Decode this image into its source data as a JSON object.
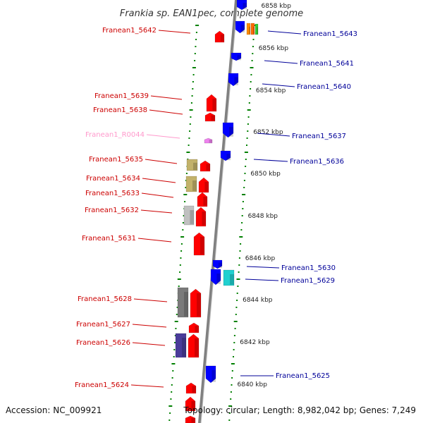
{
  "title": "Frankia sp. EAN1pec, complete genome",
  "footer": {
    "accession": "Accession: NC_009921",
    "topology": "Topology: circular; Length: 8,982,042 bp; Genes: 7,249"
  },
  "scale_labels": [
    "6858 kbp",
    "6856 kbp",
    "6854 kbp",
    "6852 kbp",
    "6850 kbp",
    "6848 kbp",
    "6846 kbp",
    "6844 kbp",
    "6842 kbp",
    "6840 kbp"
  ],
  "left_labels": [
    "Franean1_5642",
    "Franean1_5639",
    "Franean1_5638",
    "Franean1_R0044",
    "Franean1_5635",
    "Franean1_5634",
    "Franean1_5633",
    "Franean1_5632",
    "Franean1_5631",
    "Franean1_5628",
    "Franean1_5627",
    "Franean1_5626",
    "Franean1_5624"
  ],
  "right_labels": [
    "Franean1_5643",
    "Franean1_5641",
    "Franean1_5640",
    "Franean1_5637",
    "Franean1_5636",
    "Franean1_5630",
    "Franean1_5629",
    "Franean1_5625"
  ],
  "colors": {
    "forward_cds": "#ff0000",
    "reverse_cds": "#0000ff",
    "rna": "#ee82ee",
    "label_left": "#cc0000",
    "label_right": "#000099",
    "label_rna": "#ff99cc",
    "backbone": "#808080",
    "tick": "#008000"
  }
}
